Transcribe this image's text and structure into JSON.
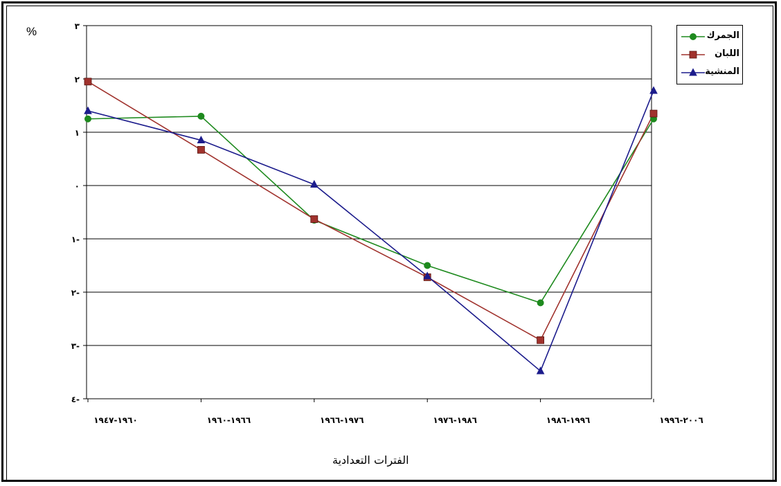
{
  "chart_data": {
    "type": "line",
    "unit_label": "%",
    "xlabel": "الفترات التعدادية",
    "categories": [
      "١٩٦٠-١٩٤٧",
      "١٩٦٦-١٩٦٠",
      "١٩٧٦-١٩٦٦",
      "١٩٨٦-١٩٧٦",
      "١٩٩٦-١٩٨٦",
      "٢٠٠٦-١٩٩٦"
    ],
    "ylim": [
      -4,
      3
    ],
    "yticks": [
      3,
      2,
      1,
      0,
      -1,
      -2,
      -3,
      -4
    ],
    "ytick_labels": [
      "٣",
      "٢",
      "١",
      "٠",
      "١-",
      "٢-",
      "٣-",
      "٤-"
    ],
    "grid": true,
    "legend_position": "top-right",
    "series": [
      {
        "name": "الجمرك",
        "color": "#1e8a1e",
        "marker": "circle",
        "values": [
          1.25,
          1.3,
          -0.65,
          -1.5,
          -2.2,
          1.25
        ]
      },
      {
        "name": "اللبان",
        "color": "#a0322d",
        "marker": "square",
        "values": [
          1.95,
          0.67,
          -0.63,
          -1.72,
          -2.9,
          1.35
        ]
      },
      {
        "name": "المنشية",
        "color": "#1c1c8c",
        "marker": "triangle",
        "values": [
          1.4,
          0.85,
          0.02,
          -1.7,
          -3.48,
          1.78
        ]
      }
    ]
  }
}
